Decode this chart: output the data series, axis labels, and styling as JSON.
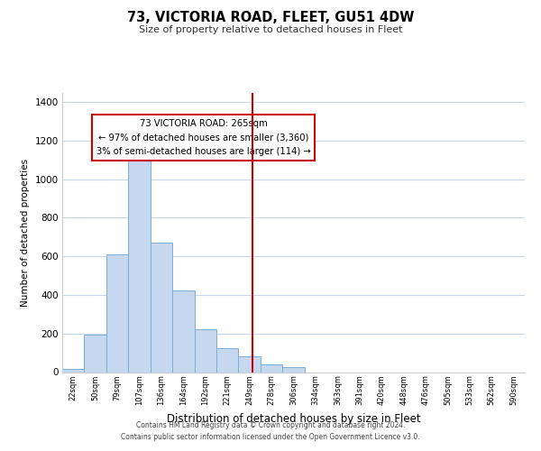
{
  "title": "73, VICTORIA ROAD, FLEET, GU51 4DW",
  "subtitle": "Size of property relative to detached houses in Fleet",
  "xlabel": "Distribution of detached houses by size in Fleet",
  "ylabel": "Number of detached properties",
  "bar_color": "#c5d8ef",
  "bar_edge_color": "#7aaed6",
  "background_color": "#ffffff",
  "grid_color": "#c8d8e8",
  "tick_labels": [
    "22sqm",
    "50sqm",
    "79sqm",
    "107sqm",
    "136sqm",
    "164sqm",
    "192sqm",
    "221sqm",
    "249sqm",
    "278sqm",
    "306sqm",
    "334sqm",
    "363sqm",
    "391sqm",
    "420sqm",
    "448sqm",
    "476sqm",
    "505sqm",
    "533sqm",
    "562sqm",
    "590sqm"
  ],
  "bar_heights": [
    15,
    193,
    610,
    1105,
    670,
    425,
    222,
    125,
    80,
    40,
    28,
    0,
    0,
    0,
    0,
    0,
    0,
    0,
    0,
    0,
    0
  ],
  "ylim": [
    0,
    1450
  ],
  "yticks": [
    0,
    200,
    400,
    600,
    800,
    1000,
    1200,
    1400
  ],
  "property_line_x": 8.65,
  "property_line_color": "#cc0000",
  "annotation_title": "73 VICTORIA ROAD: 265sqm",
  "annotation_line1": "← 97% of detached houses are smaller (3,360)",
  "annotation_line2": "3% of semi-detached houses are larger (114) →",
  "annotation_box_color": "#ffffff",
  "annotation_box_edge_color": "#cc0000",
  "footer_line1": "Contains HM Land Registry data © Crown copyright and database right 2024.",
  "footer_line2": "Contains public sector information licensed under the Open Government Licence v3.0."
}
